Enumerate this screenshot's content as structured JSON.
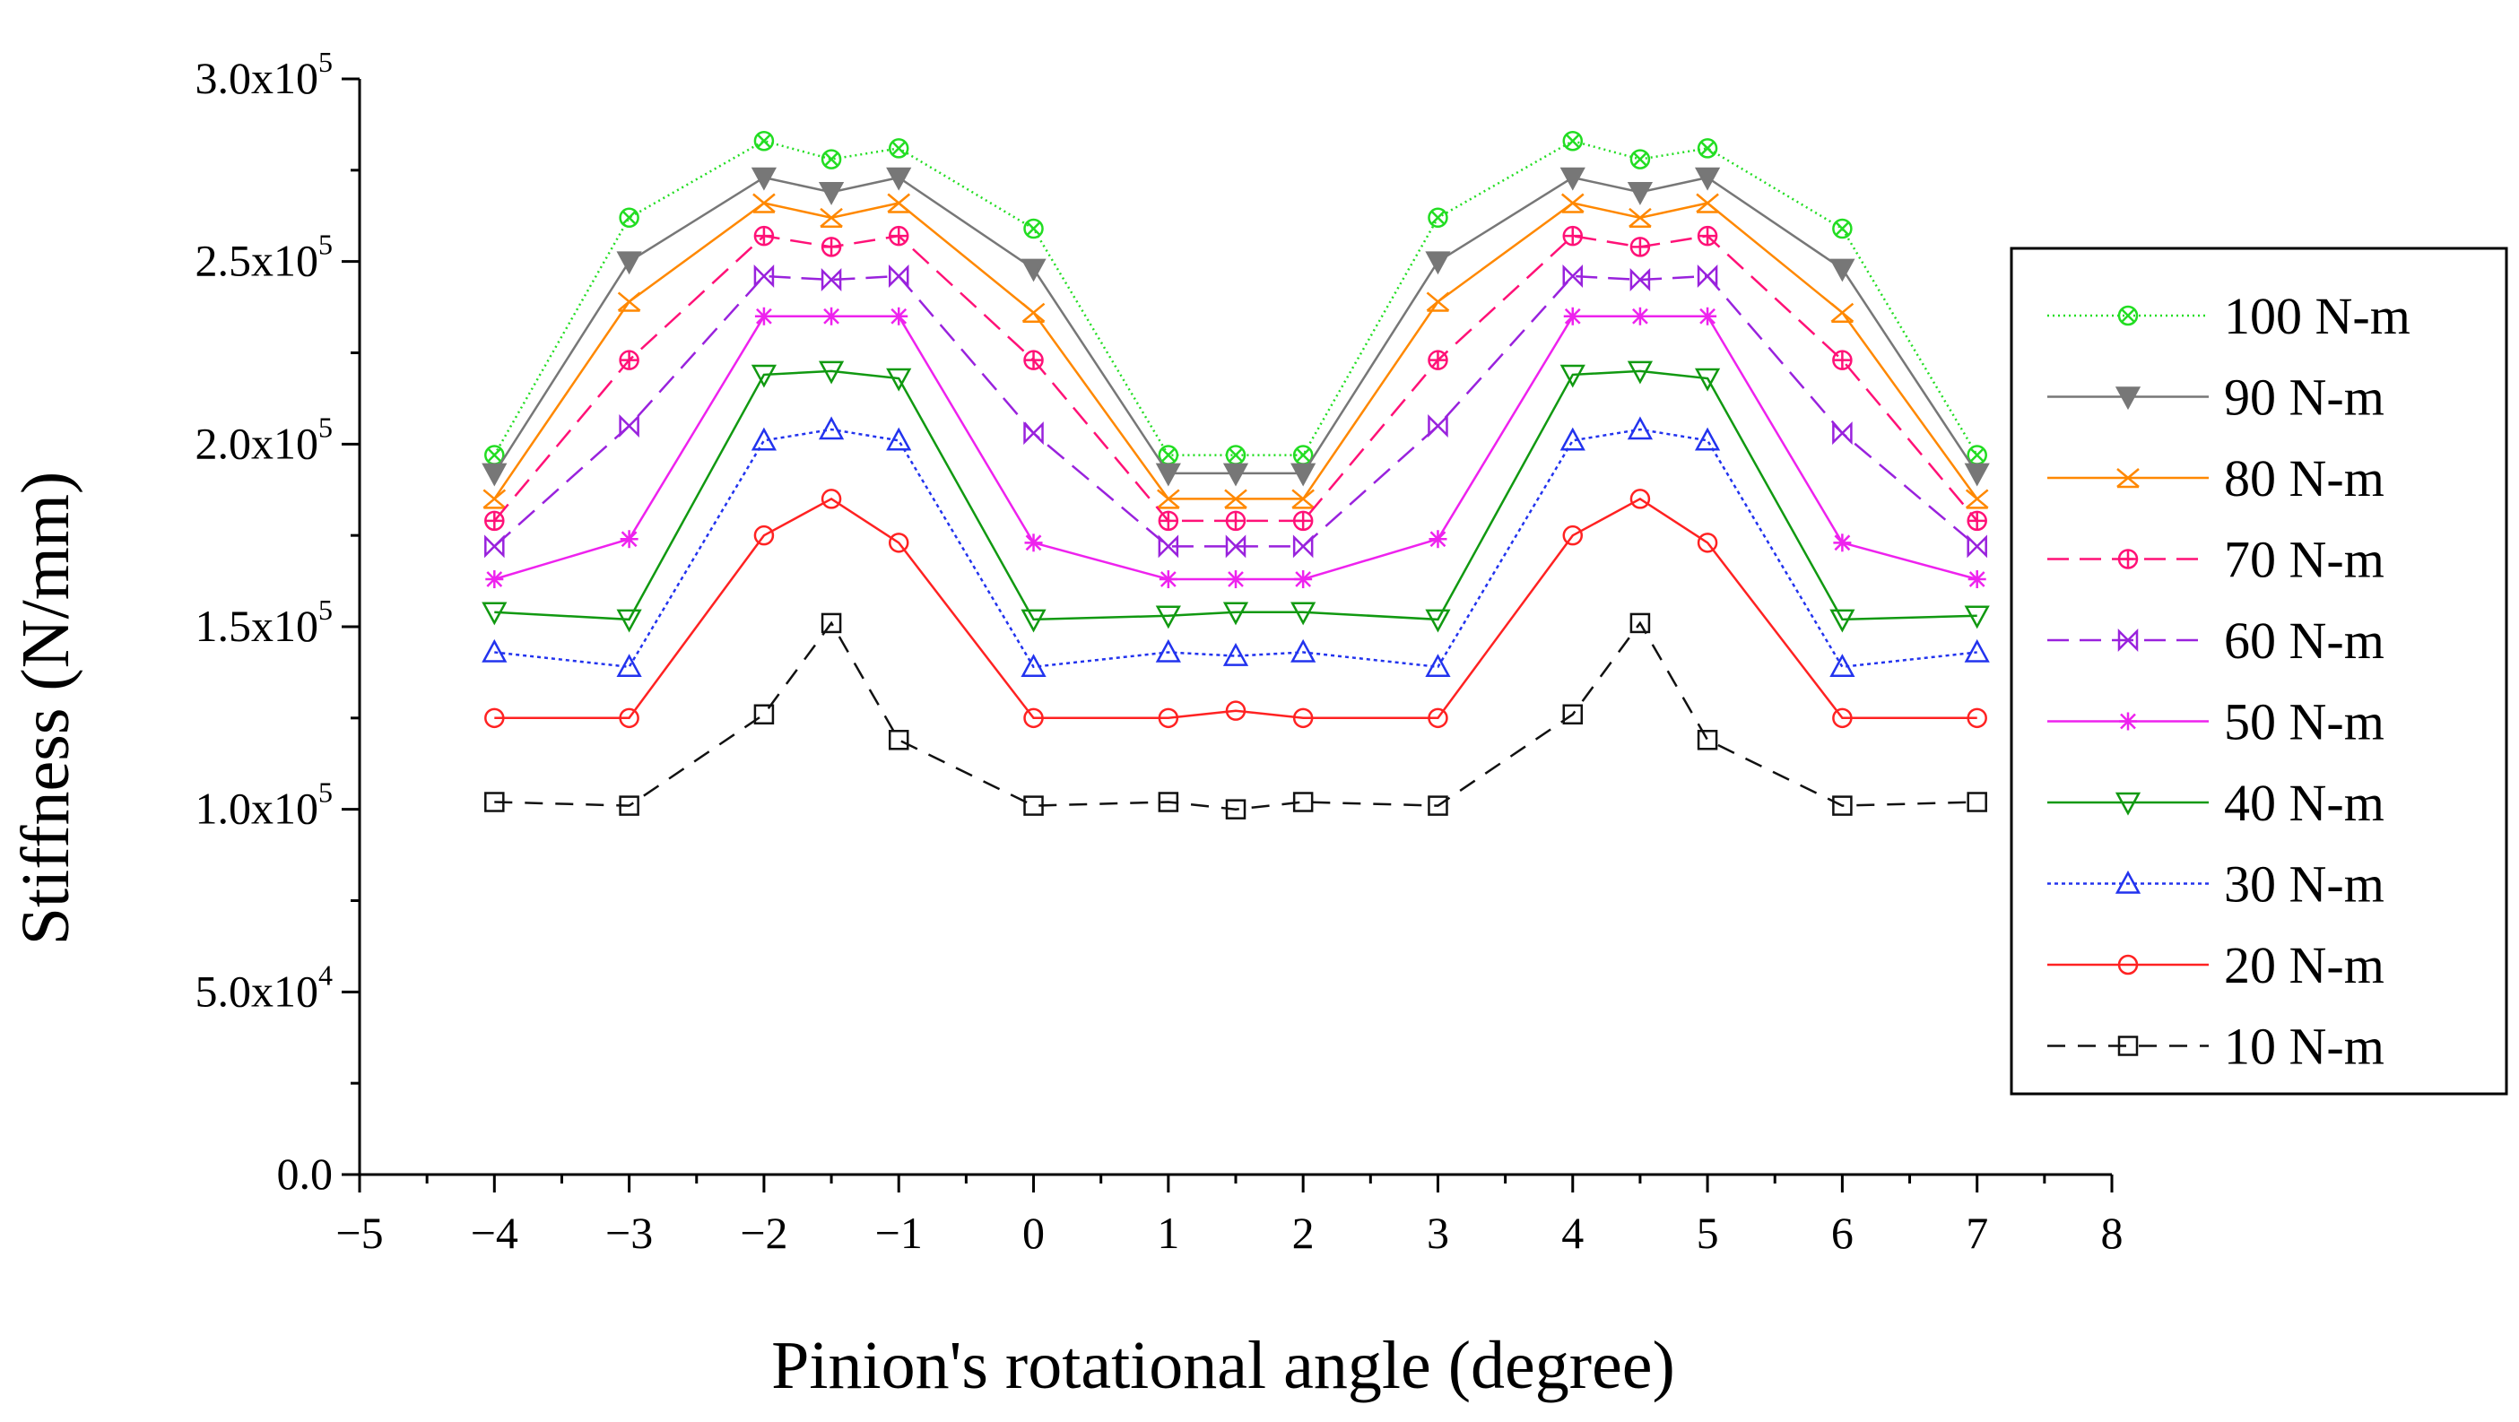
{
  "chart_data": {
    "type": "line",
    "title": "",
    "xlabel": "Pinion's rotational angle (degree)",
    "ylabel": "Stiffness (N/mm)",
    "xlim": [
      -5,
      8
    ],
    "ylim": [
      0,
      300000
    ],
    "x_ticks": [
      -5,
      -4,
      -3,
      -2,
      -1,
      0,
      1,
      2,
      3,
      4,
      5,
      6,
      7,
      8
    ],
    "x_tick_labels": [
      "−5",
      "−4",
      "−3",
      "−2",
      "−1",
      "0",
      "1",
      "2",
      "3",
      "4",
      "5",
      "6",
      "7",
      "8"
    ],
    "y_ticks": [
      {
        "value": 0,
        "mantissa": "0.0",
        "exp": ""
      },
      {
        "value": 50000,
        "mantissa": "5.0x10",
        "exp": "4"
      },
      {
        "value": 100000,
        "mantissa": "1.0x10",
        "exp": "5"
      },
      {
        "value": 150000,
        "mantissa": "1.5x10",
        "exp": "5"
      },
      {
        "value": 200000,
        "mantissa": "2.0x10",
        "exp": "5"
      },
      {
        "value": 250000,
        "mantissa": "2.5x10",
        "exp": "5"
      },
      {
        "value": 300000,
        "mantissa": "3.0x10",
        "exp": "5"
      }
    ],
    "grid": false,
    "legend_position": "right",
    "x": [
      -4,
      -3,
      -2,
      -1.5,
      -1,
      0,
      1,
      1.5,
      2,
      3,
      4,
      4.5,
      5,
      6,
      7
    ],
    "series": [
      {
        "name": "100 N-m",
        "color": "#22dd22",
        "marker": "circle-x",
        "dash": "2,4",
        "values": [
          197000,
          262000,
          283000,
          278000,
          281000,
          259000,
          197000,
          197000,
          197000,
          262000,
          283000,
          278000,
          281000,
          259000,
          197000
        ]
      },
      {
        "name": "90 N-m",
        "color": "#777777",
        "marker": "triangle-down-filled",
        "dash": "",
        "values": [
          192000,
          250000,
          273000,
          269000,
          273000,
          248000,
          192000,
          192000,
          192000,
          250000,
          273000,
          269000,
          273000,
          248000,
          192000
        ]
      },
      {
        "name": "80 N-m",
        "color": "#ff8800",
        "marker": "x-triangle",
        "dash": "",
        "values": [
          185000,
          239000,
          266000,
          262000,
          266000,
          236000,
          185000,
          185000,
          185000,
          239000,
          266000,
          262000,
          266000,
          236000,
          185000
        ]
      },
      {
        "name": "70 N-m",
        "color": "#ff1177",
        "marker": "circle-bar",
        "dash": "24,12",
        "values": [
          179000,
          223000,
          257000,
          254000,
          257000,
          223000,
          179000,
          179000,
          179000,
          223000,
          257000,
          254000,
          257000,
          223000,
          179000
        ]
      },
      {
        "name": "60 N-m",
        "color": "#9922dd",
        "marker": "bowtie",
        "dash": "24,12",
        "values": [
          172000,
          205000,
          246000,
          245000,
          246000,
          203000,
          172000,
          172000,
          172000,
          205000,
          246000,
          245000,
          246000,
          203000,
          172000
        ]
      },
      {
        "name": "50 N-m",
        "color": "#ee22ee",
        "marker": "star",
        "dash": "",
        "values": [
          163000,
          174000,
          235000,
          235000,
          235000,
          173000,
          163000,
          163000,
          163000,
          174000,
          235000,
          235000,
          235000,
          173000,
          163000
        ]
      },
      {
        "name": "40 N-m",
        "color": "#119911",
        "marker": "triangle-down",
        "dash": "",
        "values": [
          154000,
          152000,
          219000,
          220000,
          218000,
          152000,
          153000,
          154000,
          154000,
          152000,
          219000,
          220000,
          218000,
          152000,
          153000
        ]
      },
      {
        "name": "30 N-m",
        "color": "#2233ee",
        "marker": "triangle-up",
        "dash": "4,4",
        "values": [
          143000,
          139000,
          201000,
          204000,
          201000,
          139000,
          143000,
          142000,
          143000,
          139000,
          201000,
          204000,
          201000,
          139000,
          143000
        ]
      },
      {
        "name": "20 N-m",
        "color": "#ff2222",
        "marker": "circle",
        "dash": "",
        "values": [
          125000,
          125000,
          175000,
          185000,
          173000,
          125000,
          125000,
          127000,
          125000,
          125000,
          175000,
          185000,
          173000,
          125000,
          125000
        ]
      },
      {
        "name": "10 N-m",
        "color": "#111111",
        "marker": "square",
        "dash": "20,14",
        "values": [
          102000,
          101000,
          126000,
          151000,
          119000,
          101000,
          102000,
          100000,
          102000,
          101000,
          126000,
          151000,
          119000,
          101000,
          102000
        ]
      }
    ]
  }
}
